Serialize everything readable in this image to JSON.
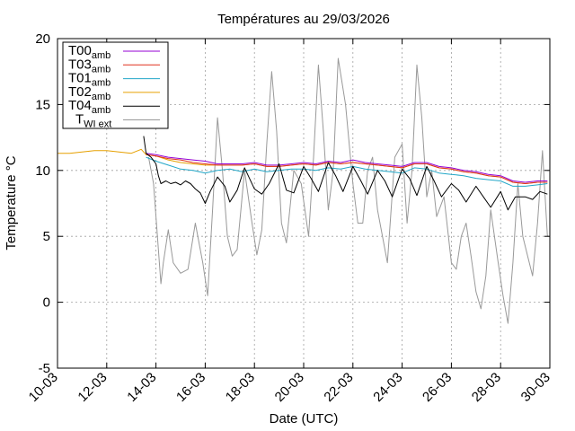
{
  "chart_data": {
    "type": "line",
    "title": "Températures  au 29/03/2026",
    "xlabel": "Date (UTC)",
    "ylabel": "Temperature °C",
    "xlim": [
      10,
      30
    ],
    "ylim": [
      -5,
      20
    ],
    "grid": true,
    "legend_position": "top-left",
    "x_ticks": [
      {
        "value": 10,
        "label": "10-03"
      },
      {
        "value": 12,
        "label": "12-03"
      },
      {
        "value": 14,
        "label": "14-03"
      },
      {
        "value": 16,
        "label": "16-03"
      },
      {
        "value": 18,
        "label": "18-03"
      },
      {
        "value": 20,
        "label": "20-03"
      },
      {
        "value": 22,
        "label": "22-03"
      },
      {
        "value": 24,
        "label": "24-03"
      },
      {
        "value": 26,
        "label": "26-03"
      },
      {
        "value": 28,
        "label": "28-03"
      },
      {
        "value": 30,
        "label": "30-03"
      }
    ],
    "y_ticks": [
      {
        "value": -5,
        "label": "-5"
      },
      {
        "value": 0,
        "label": "0"
      },
      {
        "value": 5,
        "label": "5"
      },
      {
        "value": 10,
        "label": "10"
      },
      {
        "value": 15,
        "label": "15"
      },
      {
        "value": 20,
        "label": "20"
      }
    ],
    "series": [
      {
        "name": "T00amb",
        "label_main": "T00",
        "label_sub": "amb",
        "color": "#9400d3",
        "x": [
          13.6,
          14,
          14.5,
          15,
          15.5,
          16,
          16.5,
          17,
          17.5,
          18,
          18.5,
          19,
          19.5,
          20,
          20.5,
          21,
          21.5,
          22,
          22.5,
          23,
          23.5,
          24,
          24.5,
          25,
          25.5,
          26,
          26.5,
          27,
          27.5,
          28,
          28.5,
          29,
          29.5,
          29.9
        ],
        "y": [
          11.3,
          11.2,
          11.0,
          10.9,
          10.8,
          10.7,
          10.5,
          10.5,
          10.5,
          10.6,
          10.4,
          10.4,
          10.5,
          10.6,
          10.5,
          10.7,
          10.6,
          10.8,
          10.6,
          10.5,
          10.4,
          10.3,
          10.6,
          10.6,
          10.3,
          10.2,
          10.0,
          9.9,
          9.7,
          9.6,
          9.2,
          9.1,
          9.2,
          9.2
        ]
      },
      {
        "name": "T03amb",
        "label_main": "T03",
        "label_sub": "amb",
        "color": "#e0301e",
        "x": [
          13.6,
          14,
          14.5,
          15,
          15.5,
          16,
          16.5,
          17,
          17.5,
          18,
          18.5,
          19,
          19.5,
          20,
          20.5,
          21,
          21.5,
          22,
          22.5,
          23,
          23.5,
          24,
          24.5,
          25,
          25.5,
          26,
          26.5,
          27,
          27.5,
          28,
          28.5,
          29,
          29.5,
          29.9
        ],
        "y": [
          11.2,
          11.1,
          10.9,
          10.8,
          10.6,
          10.5,
          10.4,
          10.4,
          10.4,
          10.5,
          10.3,
          10.3,
          10.4,
          10.5,
          10.4,
          10.6,
          10.5,
          10.6,
          10.5,
          10.4,
          10.3,
          10.2,
          10.5,
          10.5,
          10.2,
          10.1,
          9.9,
          9.8,
          9.6,
          9.5,
          9.1,
          9.0,
          9.1,
          9.1
        ]
      },
      {
        "name": "T01amb",
        "label_main": "T01",
        "label_sub": "amb",
        "color": "#22a7c8",
        "x": [
          13.6,
          14,
          14.5,
          15,
          15.5,
          16,
          16.5,
          17,
          17.5,
          18,
          18.5,
          19,
          19.5,
          20,
          20.5,
          21,
          21.5,
          22,
          22.5,
          23,
          23.5,
          24,
          24.5,
          25,
          25.5,
          26,
          26.5,
          27,
          27.5,
          28,
          28.5,
          29,
          29.5,
          29.9
        ],
        "y": [
          11.0,
          10.7,
          10.4,
          10.1,
          10.0,
          9.8,
          10.0,
          10.1,
          9.9,
          10.1,
          9.9,
          10.0,
          10.1,
          10.1,
          10.0,
          10.2,
          10.1,
          10.3,
          10.1,
          10.0,
          9.9,
          9.8,
          10.2,
          10.1,
          9.8,
          9.7,
          9.6,
          9.4,
          9.3,
          9.2,
          8.8,
          8.8,
          8.9,
          9.0
        ]
      },
      {
        "name": "T02amb",
        "label_main": "T02",
        "label_sub": "amb",
        "color": "#e6a000",
        "x": [
          10,
          10.5,
          11,
          11.5,
          12,
          12.5,
          13,
          13.4,
          13.6,
          14,
          14.5,
          15,
          15.5,
          16,
          16.5,
          17,
          17.5,
          18,
          18.5,
          19,
          19.5,
          20,
          20.5,
          21,
          21.5,
          22,
          22.5,
          23,
          23.5,
          24,
          24.5,
          25,
          25.5,
          26,
          26.5,
          27,
          27.5,
          28,
          28.5,
          29,
          29.5,
          29.9
        ],
        "y": [
          11.3,
          11.3,
          11.4,
          11.5,
          11.5,
          11.4,
          11.3,
          11.6,
          11.2,
          11.1,
          10.8,
          10.6,
          10.5,
          10.4,
          10.4,
          10.4,
          10.4,
          10.5,
          10.3,
          10.3,
          10.4,
          10.5,
          10.4,
          10.6,
          10.5,
          10.6,
          10.5,
          10.4,
          10.3,
          10.2,
          10.5,
          10.5,
          10.2,
          10.1,
          9.9,
          9.8,
          9.6,
          9.5,
          9.1,
          9.0,
          9.1,
          9.1
        ]
      },
      {
        "name": "T04amb",
        "label_main": "T04",
        "label_sub": "amb",
        "color": "#000000",
        "x": [
          13.5,
          13.6,
          13.8,
          14.0,
          14.1,
          14.2,
          14.4,
          14.6,
          14.8,
          15.0,
          15.2,
          15.4,
          15.6,
          15.8,
          16.0,
          16.2,
          16.5,
          16.8,
          17.0,
          17.3,
          17.6,
          18.0,
          18.3,
          18.6,
          19.0,
          19.3,
          19.6,
          20.0,
          20.3,
          20.6,
          21.0,
          21.3,
          21.6,
          22.0,
          22.3,
          22.6,
          23.0,
          23.3,
          23.6,
          24.0,
          24.3,
          24.6,
          25.0,
          25.3,
          25.6,
          26.0,
          26.3,
          26.6,
          27.0,
          27.3,
          27.6,
          28.0,
          28.3,
          28.6,
          29.0,
          29.3,
          29.6,
          29.9
        ],
        "y": [
          12.6,
          11.3,
          11.0,
          10.5,
          9.6,
          9.0,
          9.2,
          9.0,
          9.1,
          8.9,
          9.2,
          9.0,
          8.6,
          8.3,
          7.5,
          8.4,
          9.5,
          8.8,
          7.6,
          8.5,
          10.2,
          8.6,
          8.2,
          9.0,
          10.5,
          8.5,
          8.3,
          10.3,
          9.4,
          8.4,
          10.6,
          9.6,
          8.4,
          10.3,
          9.3,
          8.2,
          10.0,
          9.2,
          8.0,
          10.1,
          9.4,
          8.1,
          10.3,
          9.2,
          8.0,
          9.0,
          8.5,
          7.6,
          8.8,
          8.0,
          7.2,
          8.4,
          7.0,
          8.0,
          8.0,
          7.8,
          8.4,
          8.2
        ]
      },
      {
        "name": "TWI ext",
        "label_main": "T",
        "label_sub": "WI ext",
        "color": "#999999",
        "x": [
          13.7,
          13.9,
          14.1,
          14.2,
          14.3,
          14.5,
          14.7,
          15.0,
          15.3,
          15.6,
          15.9,
          16.1,
          16.3,
          16.5,
          16.7,
          16.9,
          17.1,
          17.3,
          17.6,
          17.9,
          18.1,
          18.3,
          18.5,
          18.7,
          18.9,
          19.1,
          19.3,
          19.6,
          19.9,
          20.2,
          20.4,
          20.6,
          20.8,
          21.0,
          21.2,
          21.4,
          21.7,
          22.0,
          22.2,
          22.4,
          22.6,
          22.8,
          23.0,
          23.2,
          23.4,
          23.7,
          24.0,
          24.2,
          24.4,
          24.6,
          24.8,
          25.0,
          25.2,
          25.4,
          25.7,
          26.0,
          26.2,
          26.4,
          26.6,
          26.8,
          27.0,
          27.2,
          27.4,
          27.6,
          27.9,
          28.1,
          28.3,
          28.5,
          28.7,
          28.9,
          29.1,
          29.3,
          29.5,
          29.7,
          29.9
        ],
        "y": [
          11.0,
          9.0,
          4.0,
          1.4,
          3.0,
          5.5,
          3.0,
          2.2,
          2.5,
          6.0,
          3.0,
          0.5,
          7.0,
          14.0,
          10.0,
          5.0,
          3.5,
          4.0,
          10.0,
          6.0,
          3.6,
          5.5,
          12.0,
          17.5,
          13.0,
          6.0,
          4.5,
          10.0,
          9.0,
          5.0,
          11.0,
          18.0,
          13.0,
          7.0,
          10.0,
          18.5,
          15.0,
          9.0,
          6.0,
          6.0,
          10.0,
          11.0,
          7.0,
          5.0,
          3.0,
          11.0,
          12.0,
          6.0,
          10.0,
          18.0,
          14.0,
          8.0,
          10.0,
          6.5,
          8.0,
          3.0,
          2.5,
          5.0,
          6.0,
          3.5,
          0.8,
          -0.5,
          2.0,
          7.0,
          3.0,
          0.5,
          -1.6,
          3.0,
          9.0,
          5.0,
          3.5,
          2.0,
          6.0,
          11.5,
          5.0
        ]
      }
    ]
  }
}
